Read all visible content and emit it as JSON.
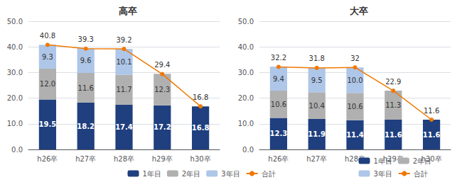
{
  "chart_data": [
    {
      "type": "bar",
      "title": "高卒",
      "stacked": true,
      "grid": true,
      "legend": "bottom",
      "data_labels": true,
      "categories": [
        "h26卒",
        "h27卒",
        "h28卒",
        "h29卒",
        "h30卒"
      ],
      "series": [
        {
          "name": "1年目",
          "type": "bar",
          "color": "#1f3f7f",
          "values": [
            19.5,
            18.2,
            17.4,
            17.2,
            16.8
          ]
        },
        {
          "name": "2年目",
          "type": "bar",
          "color": "#b0b0b0",
          "values": [
            12.0,
            11.6,
            11.7,
            12.3,
            null
          ],
          "value_labels": [
            "12.0",
            "11.6",
            "11.7",
            "12.3",
            null
          ]
        },
        {
          "name": "3年目",
          "type": "bar",
          "color": "#aec6e8",
          "values": [
            9.3,
            9.6,
            10.1,
            null,
            null
          ]
        },
        {
          "name": "合計",
          "type": "line",
          "color": "#f07800",
          "marker": "circle",
          "values": [
            40.8,
            39.3,
            39.2,
            29.4,
            16.8
          ]
        }
      ],
      "ylim": [
        0,
        50
      ],
      "yticks": [
        {
          "value": 0,
          "label": "0.0"
        },
        {
          "value": 10,
          "label": "10.0"
        },
        {
          "value": 20,
          "label": "20.0"
        },
        {
          "value": 30,
          "label": "30.0"
        },
        {
          "value": 40,
          "label": "40.0"
        },
        {
          "value": 50,
          "label": "50.0"
        }
      ]
    },
    {
      "type": "bar",
      "title": "大卒",
      "stacked": true,
      "grid": true,
      "legend": "bottom",
      "data_labels": true,
      "categories": [
        "h26卒",
        "h27卒",
        "h28卒",
        "h29卒",
        "h30卒"
      ],
      "series": [
        {
          "name": "1年目",
          "type": "bar",
          "color": "#1f3f7f",
          "values": [
            12.3,
            11.9,
            11.4,
            11.6,
            11.6
          ]
        },
        {
          "name": "2年目",
          "type": "bar",
          "color": "#b0b0b0",
          "values": [
            10.6,
            10.4,
            10.6,
            11.3,
            null
          ]
        },
        {
          "name": "3年目",
          "type": "bar",
          "color": "#aec6e8",
          "values": [
            9.4,
            9.5,
            10.0,
            null,
            null
          ],
          "value_labels": [
            "9.4",
            "9.5",
            "10.0",
            null,
            null
          ]
        },
        {
          "name": "合計",
          "type": "line",
          "color": "#f07800",
          "marker": "circle",
          "values": [
            32.2,
            31.8,
            32.0,
            22.9,
            11.6
          ]
        }
      ],
      "ylim": [
        0,
        50
      ],
      "yticks": [
        {
          "value": 0,
          "label": "0.0"
        },
        {
          "value": 10,
          "label": "10.0"
        },
        {
          "value": 20,
          "label": "20.0"
        },
        {
          "value": 30,
          "label": "30.0"
        },
        {
          "value": 40,
          "label": "40.0"
        },
        {
          "value": 50,
          "label": "50.0"
        }
      ]
    }
  ]
}
